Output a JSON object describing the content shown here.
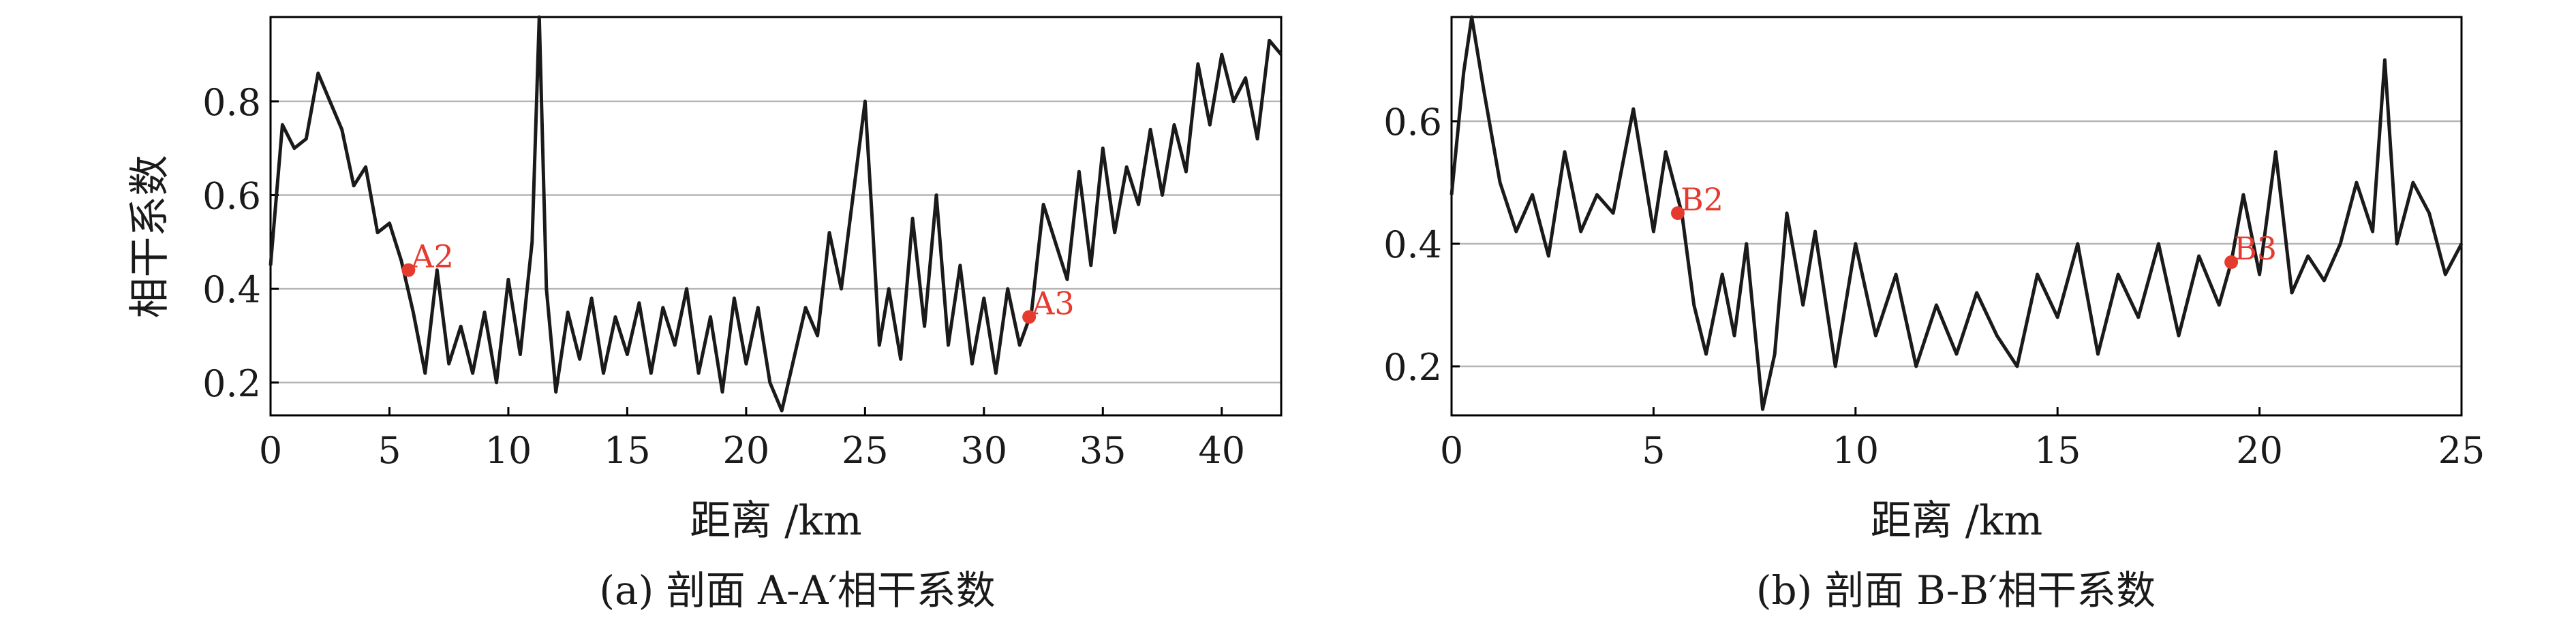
{
  "figure": {
    "captions": [
      "(a) 剖面 A-A′相干系数",
      "(b) 剖面 B-B′相干系数"
    ]
  },
  "colors": {
    "line": "#1a1a1a",
    "marker": "#e53b2f",
    "grid": "#b5b5b5",
    "axis": "#000000"
  },
  "chart_data": [
    {
      "type": "line",
      "xlabel": "距离 /km",
      "ylabel": "相干系数",
      "xlim": [
        0,
        42.5
      ],
      "ylim": [
        0.13,
        0.98
      ],
      "xticks": [
        0,
        5,
        10,
        15,
        20,
        25,
        30,
        35,
        40
      ],
      "yticks": [
        0.2,
        0.4,
        0.6,
        0.8
      ],
      "grid": "horizontal",
      "series": [
        {
          "x": [
            0,
            0.5,
            1,
            1.5,
            2,
            2.5,
            3,
            3.5,
            4,
            4.5,
            5,
            5.5,
            6,
            6.5,
            7,
            7.5,
            8,
            8.5,
            9,
            9.5,
            10,
            10.5,
            11,
            11.3,
            11.6,
            12,
            12.5,
            13,
            13.5,
            14,
            14.5,
            15,
            15.5,
            16,
            16.5,
            17,
            17.5,
            18,
            18.5,
            19,
            19.5,
            20,
            20.5,
            21,
            21.5,
            22,
            22.5,
            23,
            23.5,
            24,
            24.5,
            25,
            25.3,
            25.6,
            26,
            26.5,
            27,
            27.5,
            28,
            28.5,
            29,
            29.5,
            30,
            30.5,
            31,
            31.5,
            32,
            32.5,
            33,
            33.5,
            34,
            34.5,
            35,
            35.5,
            36,
            36.5,
            37,
            37.5,
            38,
            38.5,
            39,
            39.5,
            40,
            40.5,
            41,
            41.5,
            42,
            42.5
          ],
          "values": [
            0.45,
            0.75,
            0.7,
            0.72,
            0.86,
            0.8,
            0.74,
            0.62,
            0.66,
            0.52,
            0.54,
            0.46,
            0.35,
            0.22,
            0.44,
            0.24,
            0.32,
            0.22,
            0.35,
            0.2,
            0.42,
            0.26,
            0.5,
            0.98,
            0.4,
            0.18,
            0.35,
            0.25,
            0.38,
            0.22,
            0.34,
            0.26,
            0.37,
            0.22,
            0.36,
            0.28,
            0.4,
            0.22,
            0.34,
            0.18,
            0.38,
            0.24,
            0.36,
            0.2,
            0.14,
            0.25,
            0.36,
            0.3,
            0.52,
            0.4,
            0.6,
            0.8,
            0.55,
            0.28,
            0.4,
            0.25,
            0.55,
            0.32,
            0.6,
            0.28,
            0.45,
            0.24,
            0.38,
            0.22,
            0.4,
            0.28,
            0.35,
            0.58,
            0.5,
            0.42,
            0.65,
            0.45,
            0.7,
            0.52,
            0.66,
            0.58,
            0.74,
            0.6,
            0.75,
            0.65,
            0.88,
            0.75,
            0.9,
            0.8,
            0.85,
            0.72,
            0.93,
            0.9
          ]
        }
      ],
      "annotations": [
        {
          "label": "A2",
          "x": 5.8,
          "y": 0.44
        },
        {
          "label": "A3",
          "x": 31.9,
          "y": 0.34
        }
      ]
    },
    {
      "type": "line",
      "xlabel": "距离 /km",
      "ylabel": "",
      "xlim": [
        0,
        25
      ],
      "ylim": [
        0.12,
        0.77
      ],
      "xticks": [
        0,
        5,
        10,
        15,
        20,
        25
      ],
      "yticks": [
        0.2,
        0.4,
        0.6
      ],
      "grid": "horizontal",
      "series": [
        {
          "x": [
            0,
            0.3,
            0.5,
            0.8,
            1.2,
            1.6,
            2,
            2.4,
            2.8,
            3.2,
            3.6,
            4,
            4.5,
            5,
            5.3,
            5.7,
            6,
            6.3,
            6.7,
            7,
            7.3,
            7.7,
            8,
            8.3,
            8.7,
            9,
            9.5,
            10,
            10.5,
            11,
            11.5,
            12,
            12.5,
            13,
            13.5,
            14,
            14.5,
            15,
            15.5,
            16,
            16.5,
            17,
            17.5,
            18,
            18.5,
            19,
            19.3,
            19.6,
            20,
            20.4,
            20.8,
            21.2,
            21.6,
            22,
            22.4,
            22.8,
            23.1,
            23.4,
            23.8,
            24.2,
            24.6,
            25
          ],
          "values": [
            0.48,
            0.68,
            0.77,
            0.65,
            0.5,
            0.42,
            0.48,
            0.38,
            0.55,
            0.42,
            0.48,
            0.45,
            0.62,
            0.42,
            0.55,
            0.45,
            0.3,
            0.22,
            0.35,
            0.25,
            0.4,
            0.13,
            0.22,
            0.45,
            0.3,
            0.42,
            0.2,
            0.4,
            0.25,
            0.35,
            0.2,
            0.3,
            0.22,
            0.32,
            0.25,
            0.2,
            0.35,
            0.28,
            0.4,
            0.22,
            0.35,
            0.28,
            0.4,
            0.25,
            0.38,
            0.3,
            0.37,
            0.48,
            0.35,
            0.55,
            0.32,
            0.38,
            0.34,
            0.4,
            0.5,
            0.42,
            0.7,
            0.4,
            0.5,
            0.45,
            0.35,
            0.4
          ]
        }
      ],
      "annotations": [
        {
          "label": "B2",
          "x": 5.6,
          "y": 0.45
        },
        {
          "label": "B3",
          "x": 19.3,
          "y": 0.37
        }
      ]
    }
  ]
}
